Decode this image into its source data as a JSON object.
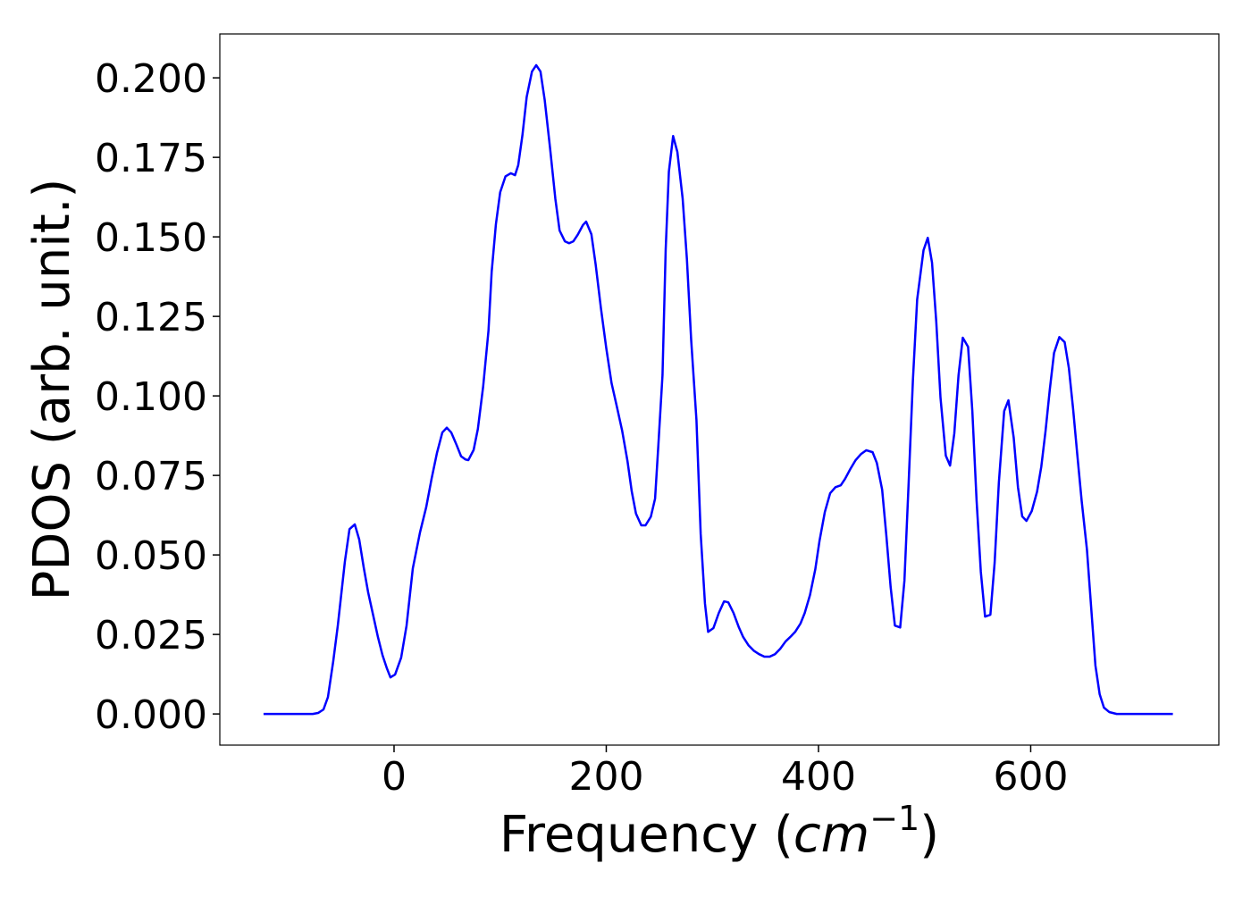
{
  "chart_data": {
    "type": "line",
    "xlabel": [
      "Frequency (",
      "cm",
      "−1",
      ")"
    ],
    "ylabel": "PDOS (arb. unit.)",
    "color": "#0000ff",
    "x": [
      -123,
      -76.6,
      -71.6,
      -66.5,
      -62.3,
      -57.3,
      -53,
      -46.3,
      -42,
      -37,
      -32.8,
      -28.6,
      -24.4,
      -19.4,
      -15.2,
      -10.9,
      -6.7,
      -3.4,
      1,
      6.7,
      11.8,
      17.7,
      24.4,
      30.3,
      35.4,
      40.4,
      45.5,
      49.7,
      53.9,
      58.9,
      63.2,
      67.4,
      70,
      75,
      79,
      84,
      89,
      92,
      96,
      100,
      105,
      110,
      114,
      117,
      121,
      125,
      130,
      134,
      138,
      142,
      147,
      152,
      156,
      161,
      165,
      169,
      173,
      178,
      181,
      186,
      190,
      195,
      200,
      205,
      210,
      215,
      220,
      224,
      228,
      233,
      237,
      242,
      246,
      249,
      253,
      256,
      259,
      263,
      267,
      272,
      276,
      280,
      285,
      289,
      293,
      296,
      301,
      306,
      311,
      315,
      320,
      325,
      329,
      334,
      339,
      344,
      349,
      354,
      359,
      364,
      369,
      374,
      378,
      383,
      387,
      392,
      397,
      401,
      406,
      411,
      416,
      421,
      425,
      430,
      435,
      440,
      445,
      451,
      455,
      460,
      464,
      468,
      472,
      477,
      481,
      485,
      489,
      493,
      499,
      503,
      507,
      511,
      515,
      520,
      524,
      528,
      532,
      536,
      541,
      545,
      549,
      553,
      557,
      562,
      566,
      570,
      575,
      579,
      584,
      588,
      592,
      596,
      601,
      606,
      610,
      614,
      618,
      622,
      627,
      632,
      636,
      640,
      644,
      648,
      653,
      657,
      661,
      665,
      669,
      674,
      681,
      734
    ],
    "values": [
      0,
      0,
      0.0003,
      0.0014,
      0.0053,
      0.0166,
      0.0278,
      0.048,
      0.0581,
      0.0596,
      0.0548,
      0.0461,
      0.0382,
      0.0306,
      0.0242,
      0.0185,
      0.0143,
      0.0115,
      0.0124,
      0.0177,
      0.0278,
      0.0458,
      0.057,
      0.065,
      0.074,
      0.082,
      0.0885,
      0.09,
      0.0885,
      0.0846,
      0.081,
      0.08,
      0.0798,
      0.083,
      0.0896,
      0.103,
      0.1205,
      0.139,
      0.154,
      0.164,
      0.169,
      0.17,
      0.1694,
      0.1725,
      0.182,
      0.194,
      0.202,
      0.204,
      0.202,
      0.193,
      0.178,
      0.162,
      0.152,
      0.1486,
      0.148,
      0.1486,
      0.1506,
      0.1537,
      0.1548,
      0.1508,
      0.1413,
      0.1275,
      0.115,
      0.104,
      0.0966,
      0.089,
      0.0795,
      0.07,
      0.063,
      0.0593,
      0.0593,
      0.062,
      0.0677,
      0.084,
      0.1065,
      0.146,
      0.1705,
      0.1817,
      0.1767,
      0.162,
      0.143,
      0.1177,
      0.0924,
      0.0565,
      0.0348,
      0.0258,
      0.027,
      0.0317,
      0.0354,
      0.0351,
      0.0317,
      0.0272,
      0.0242,
      0.0216,
      0.0199,
      0.0188,
      0.018,
      0.018,
      0.0188,
      0.0205,
      0.0228,
      0.0244,
      0.0258,
      0.0284,
      0.0317,
      0.0374,
      0.0455,
      0.0545,
      0.0635,
      0.0694,
      0.0713,
      0.0719,
      0.0739,
      0.077,
      0.0798,
      0.0817,
      0.0829,
      0.0823,
      0.0789,
      0.0705,
      0.0559,
      0.0399,
      0.0278,
      0.0272,
      0.0419,
      0.0728,
      0.105,
      0.1303,
      0.1458,
      0.1497,
      0.1419,
      0.1233,
      0.0994,
      0.0812,
      0.0781,
      0.0882,
      0.1065,
      0.1183,
      0.1154,
      0.0952,
      0.0671,
      0.0447,
      0.0306,
      0.0312,
      0.0475,
      0.0728,
      0.0952,
      0.0986,
      0.0868,
      0.0713,
      0.0621,
      0.0607,
      0.0638,
      0.0699,
      0.0778,
      0.089,
      0.102,
      0.1135,
      0.1185,
      0.1169,
      0.1087,
      0.0958,
      0.0812,
      0.0671,
      0.0517,
      0.0334,
      0.0152,
      0.0062,
      0.002,
      0.0006,
      0,
      0
    ],
    "xlim": [
      -164.2,
      777.3
    ],
    "ylim": [
      -0.0098,
      0.2138
    ],
    "xticks": [
      0,
      200,
      400,
      600
    ],
    "yticks": [
      {
        "value": 0,
        "label": "0.000"
      },
      {
        "value": 0.025,
        "label": "0.025"
      },
      {
        "value": 0.05,
        "label": "0.050"
      },
      {
        "value": 0.075,
        "label": "0.075"
      },
      {
        "value": 0.1,
        "label": "0.100"
      },
      {
        "value": 0.125,
        "label": "0.125"
      },
      {
        "value": 0.15,
        "label": "0.150"
      },
      {
        "value": 0.175,
        "label": "0.175"
      },
      {
        "value": 0.2,
        "label": "0.200"
      }
    ]
  }
}
